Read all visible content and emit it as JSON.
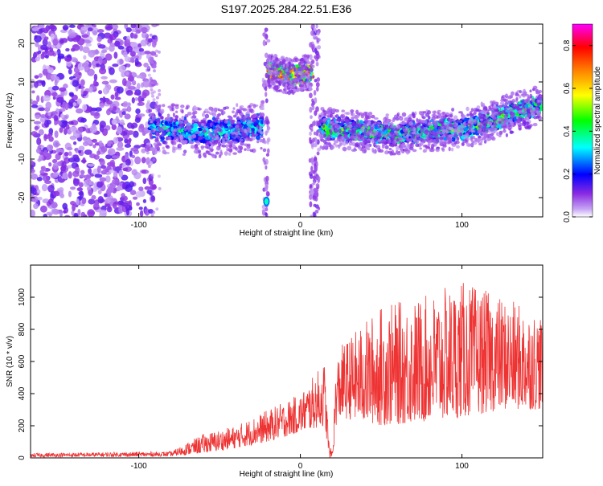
{
  "page_title": "S197.2025.284.22.51.E36",
  "chart_data": [
    {
      "type": "heatmap",
      "title": "S197.2025.284.22.51.E36",
      "xlabel": "Height of straight line (km)",
      "ylabel": "Frequency (Hz)",
      "xlim": [
        -167,
        150
      ],
      "ylim": [
        -25,
        25
      ],
      "x_ticks": [
        -100,
        0,
        100
      ],
      "y_ticks": [
        -20,
        -10,
        0,
        10,
        20
      ],
      "colorbar": {
        "label": "Normalized spectral amplitude",
        "range": [
          0,
          0.9
        ],
        "ticks": [
          0.0,
          0.2,
          0.4,
          0.6,
          0.8
        ],
        "colormap": [
          "#ffffff",
          "#8a2be2",
          "#0000ff",
          "#00ffff",
          "#00ff00",
          "#ffff00",
          "#ff8000",
          "#ff0000",
          "#ff00ff"
        ]
      },
      "regions": [
        {
          "name": "noise",
          "x_range": [
            -167,
            -90
          ],
          "freq_range": [
            -25,
            25
          ]
        },
        {
          "name": "lower-track",
          "x_range": [
            -95,
            -22
          ],
          "center_freq_hz": -2
        },
        {
          "name": "upper-track",
          "x_range": [
            -20,
            7
          ],
          "center_freq_hz": 12
        },
        {
          "name": "vertical-stripe",
          "x_range": [
            -22,
            -20
          ],
          "freq_range": [
            -25,
            25
          ]
        },
        {
          "name": "vertical-stripe",
          "x_range": [
            7,
            12
          ],
          "freq_range": [
            -25,
            25
          ]
        },
        {
          "name": "spot",
          "x": -21,
          "freq_hz": -21
        },
        {
          "name": "right-track",
          "x_range": [
            12,
            150
          ],
          "center_freq_hz": [
            -2,
            -3,
            -4,
            -3,
            0,
            4
          ]
        }
      ]
    },
    {
      "type": "line",
      "xlabel": "Height of straight line (km)",
      "ylabel": "SNR (10 * v/v)",
      "xlim": [
        -167,
        150
      ],
      "ylim": [
        0,
        1200
      ],
      "x_ticks": [
        -100,
        0,
        100
      ],
      "y_ticks": [
        0,
        200,
        400,
        600,
        800,
        1000
      ],
      "color": "#ee3333",
      "envelope": {
        "x": [
          -167,
          -80,
          -60,
          -40,
          -20,
          0,
          15,
          18,
          20,
          22,
          25,
          50,
          75,
          100,
          125,
          150
        ],
        "y_low": [
          5,
          10,
          30,
          60,
          100,
          160,
          200,
          0,
          0,
          200,
          250,
          200,
          220,
          250,
          300,
          300
        ],
        "y_high": [
          30,
          40,
          150,
          200,
          300,
          400,
          600,
          60,
          60,
          600,
          700,
          950,
          1000,
          1100,
          1000,
          900
        ]
      }
    }
  ]
}
